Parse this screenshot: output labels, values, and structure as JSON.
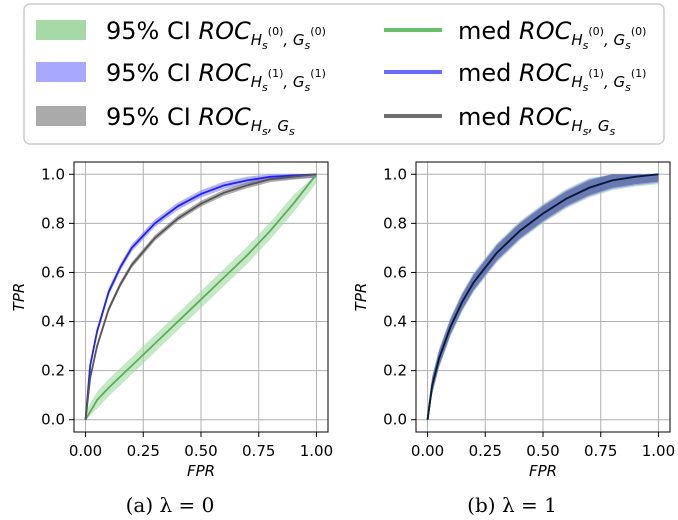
{
  "legend": {
    "entries": [
      {
        "prefix": "95% CI",
        "label": "ROC",
        "sub": "H",
        "subsub": "s",
        "sup": "(0)",
        "sub2": "G",
        "subsub2": "s",
        "sup2": "(0)",
        "color": "#2ca02c",
        "kind": "band"
      },
      {
        "prefix": "95% CI",
        "label": "ROC",
        "sub": "H",
        "subsub": "s",
        "sup": "(1)",
        "sub2": "G",
        "subsub2": "s",
        "sup2": "(1)",
        "color": "#1f1fff",
        "kind": "band"
      },
      {
        "prefix": "95% CI",
        "label": "ROC",
        "sub": "H",
        "subsub": "s",
        "sup": "",
        "sub2": "G",
        "subsub2": "s",
        "sup2": "",
        "color": "#555555",
        "kind": "band"
      },
      {
        "prefix": "med",
        "label": "ROC",
        "sub": "H",
        "subsub": "s",
        "sup": "(0)",
        "sub2": "G",
        "subsub2": "s",
        "sup2": "(0)",
        "color": "#2ca02c",
        "kind": "line"
      },
      {
        "prefix": "med",
        "label": "ROC",
        "sub": "H",
        "subsub": "s",
        "sup": "(1)",
        "sub2": "G",
        "subsub2": "s",
        "sup2": "(1)",
        "color": "#1f1fff",
        "kind": "line"
      },
      {
        "prefix": "med",
        "label": "ROC",
        "sub": "H",
        "subsub": "s",
        "sup": "",
        "sub2": "G",
        "subsub2": "s",
        "sup2": "",
        "color": "#555555",
        "kind": "line"
      }
    ]
  },
  "chart_data": [
    {
      "type": "line",
      "caption": "(a) λ = 0",
      "xlabel": "FPR",
      "ylabel": "TPR",
      "xlim": [
        0,
        1
      ],
      "ylim": [
        0,
        1
      ],
      "xticks": [
        "0.00",
        "0.25",
        "0.50",
        "0.75",
        "1.00"
      ],
      "yticks": [
        "0.0",
        "0.2",
        "0.4",
        "0.6",
        "0.8",
        "1.0"
      ],
      "grid": true,
      "series": [
        {
          "name": "med ROC H_s^(0), G_s^(0)",
          "color": "#2ca02c",
          "x": [
            0,
            0.05,
            0.1,
            0.2,
            0.3,
            0.4,
            0.5,
            0.6,
            0.7,
            0.8,
            0.9,
            1.0
          ],
          "y": [
            0,
            0.08,
            0.13,
            0.22,
            0.31,
            0.4,
            0.49,
            0.58,
            0.67,
            0.77,
            0.88,
            1.0
          ],
          "ci_half_width": 0.035
        },
        {
          "name": "med ROC H_s^(1), G_s^(1)",
          "color": "#1f1fff",
          "x": [
            0,
            0.02,
            0.05,
            0.1,
            0.15,
            0.2,
            0.3,
            0.4,
            0.5,
            0.6,
            0.7,
            0.8,
            0.9,
            1.0
          ],
          "y": [
            0,
            0.22,
            0.36,
            0.52,
            0.62,
            0.7,
            0.8,
            0.87,
            0.92,
            0.955,
            0.975,
            0.99,
            0.995,
            1.0
          ],
          "ci_half_width": 0.015
        },
        {
          "name": "med ROC H_s, G_s",
          "color": "#555555",
          "x": [
            0,
            0.02,
            0.05,
            0.1,
            0.15,
            0.2,
            0.3,
            0.4,
            0.5,
            0.6,
            0.7,
            0.8,
            0.9,
            1.0
          ],
          "y": [
            0,
            0.17,
            0.3,
            0.45,
            0.55,
            0.63,
            0.74,
            0.82,
            0.88,
            0.925,
            0.955,
            0.98,
            0.99,
            1.0
          ],
          "ci_half_width": 0.012
        }
      ]
    },
    {
      "type": "line",
      "caption": "(b) λ = 1",
      "xlabel": "FPR",
      "ylabel": "TPR",
      "xlim": [
        0,
        1
      ],
      "ylim": [
        0,
        1
      ],
      "xticks": [
        "0.00",
        "0.25",
        "0.50",
        "0.75",
        "1.00"
      ],
      "yticks": [
        "0.0",
        "0.2",
        "0.4",
        "0.6",
        "0.8",
        "1.0"
      ],
      "grid": true,
      "series": [
        {
          "name": "med ROC H_s^(0), G_s^(0)",
          "color": "#2ca02c",
          "x": [
            0,
            0.02,
            0.05,
            0.1,
            0.15,
            0.2,
            0.3,
            0.4,
            0.5,
            0.6,
            0.7,
            0.8,
            0.9,
            1.0
          ],
          "y": [
            0,
            0.14,
            0.25,
            0.38,
            0.48,
            0.56,
            0.68,
            0.77,
            0.84,
            0.9,
            0.945,
            0.975,
            0.99,
            1.0
          ],
          "ci_half_width": 0.04
        },
        {
          "name": "med ROC H_s^(1), G_s^(1)",
          "color": "#1f1fff",
          "x": [
            0,
            0.02,
            0.05,
            0.1,
            0.15,
            0.2,
            0.3,
            0.4,
            0.5,
            0.6,
            0.7,
            0.8,
            0.9,
            1.0
          ],
          "y": [
            0,
            0.14,
            0.25,
            0.38,
            0.48,
            0.56,
            0.68,
            0.77,
            0.84,
            0.9,
            0.945,
            0.975,
            0.99,
            1.0
          ],
          "ci_half_width": 0.035
        },
        {
          "name": "med ROC H_s, G_s",
          "color": "#0a1a3a",
          "x": [
            0,
            0.02,
            0.05,
            0.1,
            0.15,
            0.2,
            0.3,
            0.4,
            0.5,
            0.6,
            0.7,
            0.8,
            0.9,
            1.0
          ],
          "y": [
            0,
            0.14,
            0.25,
            0.38,
            0.48,
            0.56,
            0.68,
            0.77,
            0.84,
            0.9,
            0.945,
            0.975,
            0.99,
            1.0
          ],
          "ci_half_width": 0.03
        }
      ]
    }
  ]
}
